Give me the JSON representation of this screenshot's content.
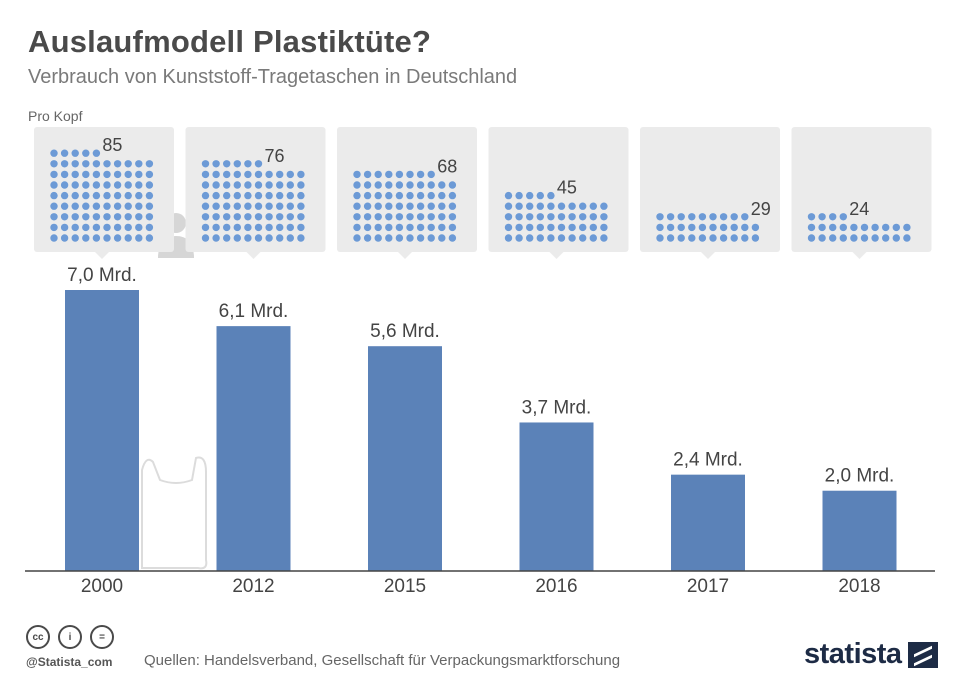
{
  "header": {
    "title": "Auslaufmodell Plastiktüte?",
    "subtitle": "Verbrauch von Kunststoff-Tragetaschen in Deutschland",
    "per_capita_label": "Pro Kopf"
  },
  "chart_data": {
    "type": "bar",
    "categories": [
      "2000",
      "2012",
      "2015",
      "2016",
      "2017",
      "2018"
    ],
    "values": [
      7.0,
      6.1,
      5.6,
      3.7,
      2.4,
      2.0
    ],
    "value_labels": [
      "7,0 Mrd.",
      "6,1 Mrd.",
      "5,6 Mrd.",
      "3,7 Mrd.",
      "2,4 Mrd.",
      "2,0 Mrd."
    ],
    "per_capita": [
      85,
      76,
      68,
      45,
      29,
      24
    ],
    "per_capita_labels": [
      "85",
      "76",
      "68",
      "45",
      "29",
      "24"
    ],
    "title": "Auslaufmodell Plastiktüte?",
    "xlabel": "",
    "ylabel": "",
    "ylim": [
      0,
      7.0
    ],
    "grid": false,
    "bar_color": "#5b82b8",
    "dot_color": "#6c9ad6",
    "panel_color": "#ebebeb"
  },
  "footer": {
    "cc_icons": [
      "cc-icon",
      "by-icon",
      "nd-icon"
    ],
    "cc_glyphs": [
      "cc",
      "i",
      "="
    ],
    "handle": "@Statista_com",
    "source": "Quellen: Handelsverband, Gesellschaft für Verpackungsmarktforschung",
    "logo": "statista"
  }
}
